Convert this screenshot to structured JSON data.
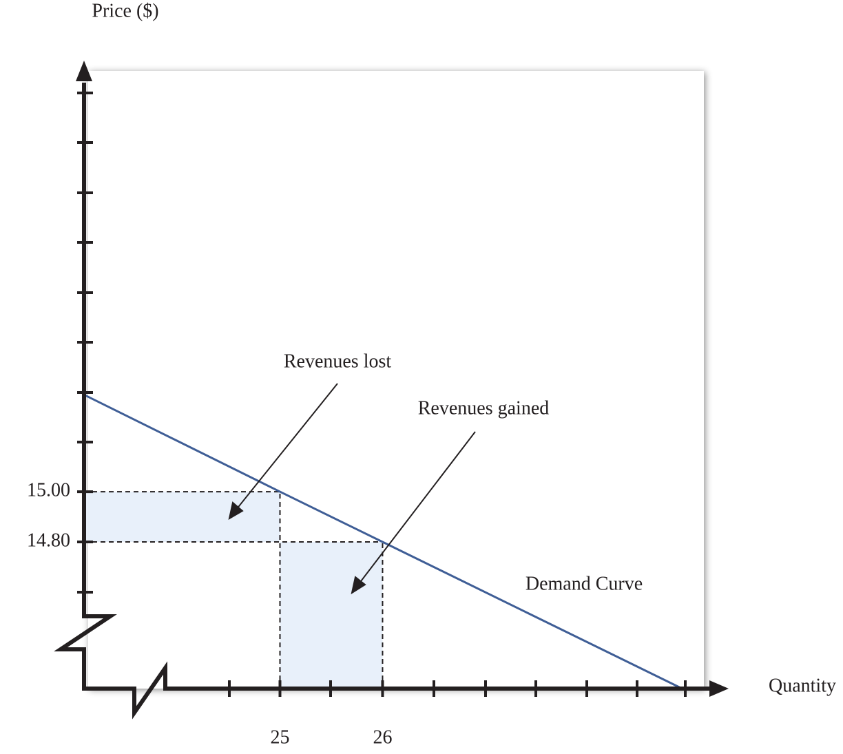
{
  "chart_data": {
    "type": "line",
    "y_label": "Price ($)",
    "x_label": "Quantity",
    "x": [
      23.09,
      25,
      26,
      28.92
    ],
    "series": [
      {
        "name": "Demand Curve",
        "color": "#3f5e96",
        "values": [
          15.386,
          15,
          14.8,
          14.216
        ]
      }
    ],
    "xlim": [
      23.09,
      29.32
    ],
    "ylim": [
      14.216,
      16.67
    ],
    "xticks": [
      25,
      26
    ],
    "yticks": [
      {
        "value": 15,
        "label": "15.00"
      },
      {
        "value": 14.8,
        "label": "14.80"
      }
    ],
    "annotations": [
      "Revenues lost",
      "Revenues gained"
    ],
    "shade_color": "#e8f0fa"
  }
}
